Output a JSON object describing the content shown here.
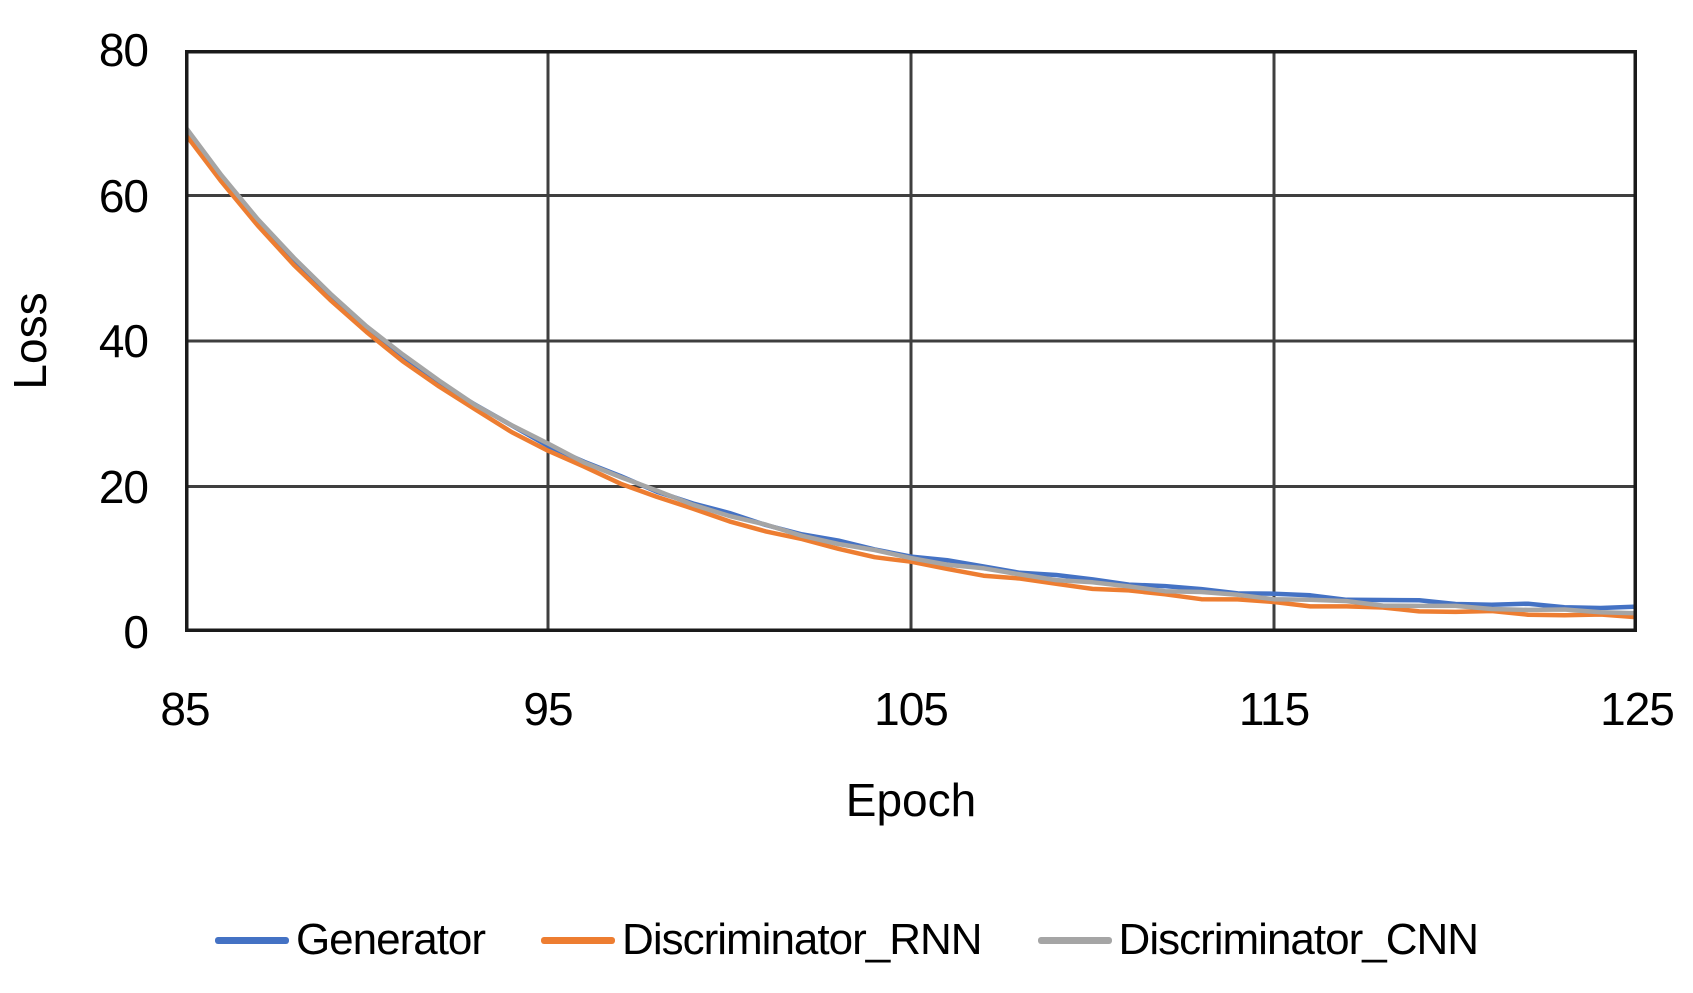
{
  "figure": {
    "background": "#ffffff",
    "text_color": "#000000",
    "grid_color": "#3f3f3f",
    "border_color": "#1a1a1a"
  },
  "chart_data": {
    "type": "line",
    "title": "",
    "xlabel": "Epoch",
    "ylabel": "Loss",
    "xlim": [
      85,
      125
    ],
    "ylim": [
      0,
      80
    ],
    "x_ticks": [
      85,
      95,
      105,
      115,
      125
    ],
    "y_ticks": [
      0,
      20,
      40,
      60,
      80
    ],
    "grid": "on",
    "legend_position": "bottom",
    "x": [
      85,
      86,
      87,
      88,
      89,
      90,
      91,
      92,
      93,
      94,
      95,
      96,
      97,
      98,
      99,
      100,
      101,
      102,
      103,
      104,
      105,
      106,
      107,
      108,
      109,
      110,
      111,
      112,
      113,
      114,
      115,
      116,
      117,
      118,
      119,
      120,
      121,
      122,
      123,
      124,
      125
    ],
    "series": [
      {
        "name": "Generator",
        "color": "#4472C4",
        "values": [
          69.0,
          62.4,
          56.4,
          51.0,
          46.2,
          41.8,
          37.9,
          34.3,
          31.2,
          28.3,
          25.7,
          23.4,
          21.3,
          19.4,
          17.7,
          16.2,
          14.8,
          13.5,
          12.4,
          11.4,
          10.5,
          9.7,
          9.0,
          8.3,
          7.7,
          7.2,
          6.7,
          6.2,
          5.8,
          5.5,
          5.2,
          4.9,
          4.6,
          4.4,
          4.2,
          4.0,
          3.8,
          3.7,
          3.5,
          3.4,
          3.3
        ]
      },
      {
        "name": "Discriminator_RNN",
        "color": "#ED7D31",
        "values": [
          68.5,
          61.9,
          55.9,
          50.5,
          45.6,
          41.2,
          37.3,
          33.7,
          30.5,
          27.6,
          24.9,
          22.6,
          20.5,
          18.6,
          16.8,
          15.3,
          13.9,
          12.6,
          11.5,
          10.4,
          9.5,
          8.7,
          7.9,
          7.2,
          6.6,
          6.1,
          5.6,
          5.1,
          4.7,
          4.4,
          4.0,
          3.7,
          3.5,
          3.2,
          3.0,
          2.8,
          2.7,
          2.5,
          2.4,
          2.2,
          2.1
        ]
      },
      {
        "name": "Discriminator_CNN",
        "color": "#A5A5A5",
        "values": [
          69.5,
          62.8,
          56.8,
          51.4,
          46.5,
          42.1,
          38.1,
          34.5,
          31.3,
          28.4,
          25.8,
          23.4,
          21.3,
          19.3,
          17.6,
          16.0,
          14.6,
          13.3,
          12.2,
          11.1,
          10.2,
          9.4,
          8.6,
          7.9,
          7.3,
          6.7,
          6.2,
          5.8,
          5.4,
          5.0,
          4.7,
          4.4,
          4.1,
          3.8,
          3.6,
          3.4,
          3.3,
          3.1,
          2.9,
          2.8,
          2.7
        ]
      }
    ]
  }
}
